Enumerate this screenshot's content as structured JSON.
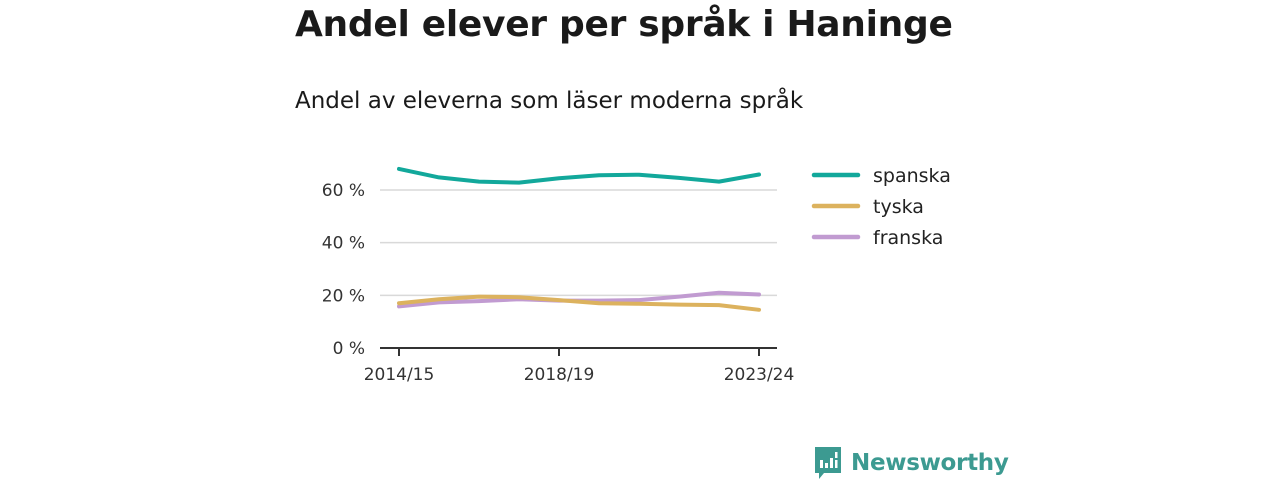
{
  "title": "Andel elever per språk i Haninge",
  "subtitle": "Andel av eleverna som läser moderna språk",
  "logo": {
    "text": "Newsworthy",
    "icon": "newsworthy-logo-icon",
    "color": "#3c9a91"
  },
  "chart_data": {
    "type": "line",
    "title": "Andel elever per språk i Haninge",
    "subtitle": "Andel av eleverna som läser moderna språk",
    "x": [
      "2014/15",
      "2015/16",
      "2016/17",
      "2017/18",
      "2018/19",
      "2019/20",
      "2020/21",
      "2021/22",
      "2022/23",
      "2023/24"
    ],
    "x_tick_labels": [
      "2014/15",
      "2018/19",
      "2023/24"
    ],
    "ylim": [
      0,
      70
    ],
    "y_ticks": [
      0,
      20,
      40,
      60
    ],
    "y_tick_labels": [
      "0 %",
      "20 %",
      "40 %",
      "60 %"
    ],
    "grid": true,
    "legend_position": "right",
    "series": [
      {
        "name": "spanska",
        "color": "#12a89b",
        "values": [
          68,
          64.8,
          63.2,
          62.8,
          64.5,
          65.6,
          65.8,
          64.6,
          63.2,
          65.9
        ]
      },
      {
        "name": "tyska",
        "color": "#dcb25e",
        "values": [
          17,
          18.5,
          19.5,
          19.3,
          18.2,
          17,
          16.8,
          16.5,
          16.3,
          14.5
        ]
      },
      {
        "name": "franska",
        "color": "#c19bd1",
        "values": [
          15.8,
          17.3,
          17.8,
          18.5,
          18,
          18,
          18.2,
          19.5,
          21,
          20.3
        ]
      }
    ]
  }
}
